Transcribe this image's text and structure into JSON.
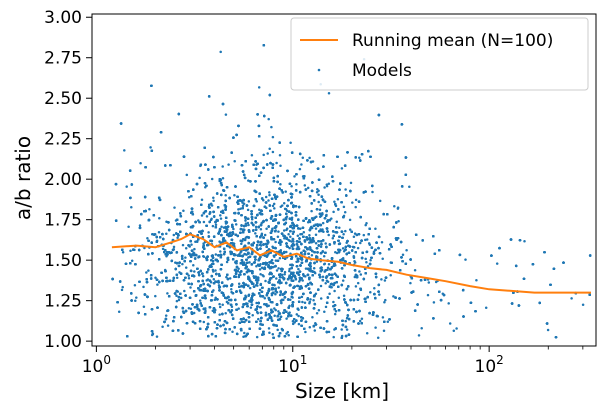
{
  "chart_data": {
    "type": "scatter",
    "xlabel": "Size [km]",
    "ylabel": "a/b ratio",
    "xscale": "log",
    "xlim": [
      0.95,
      350
    ],
    "ylim": [
      0.97,
      3.02
    ],
    "xticks": [
      {
        "value": 1,
        "base": "10",
        "exp": "0"
      },
      {
        "value": 10,
        "base": "10",
        "exp": "1"
      },
      {
        "value": 100,
        "base": "10",
        "exp": "2"
      }
    ],
    "yticks": [
      {
        "value": 1.0,
        "label": "1.00"
      },
      {
        "value": 1.25,
        "label": "1.25"
      },
      {
        "value": 1.5,
        "label": "1.50"
      },
      {
        "value": 1.75,
        "label": "1.75"
      },
      {
        "value": 2.0,
        "label": "2.00"
      },
      {
        "value": 2.25,
        "label": "2.25"
      },
      {
        "value": 2.5,
        "label": "2.50"
      },
      {
        "value": 2.75,
        "label": "2.75"
      },
      {
        "value": 3.0,
        "label": "3.00"
      }
    ],
    "legend_position": "top-right",
    "series": [
      {
        "name": "Running mean (N=100)",
        "kind": "line",
        "color": "#ff7f0e",
        "x": [
          1.2,
          1.6,
          2.0,
          2.4,
          2.7,
          3.0,
          3.5,
          4.0,
          4.6,
          5.2,
          6.0,
          6.8,
          7.8,
          9.0,
          10.5,
          12.0,
          14.0,
          17.0,
          20.0,
          25.0,
          30.0,
          38.0,
          48.0,
          60.0,
          80.0,
          100.0,
          130.0,
          170.0,
          220.0,
          330.0
        ],
        "y": [
          1.58,
          1.59,
          1.58,
          1.61,
          1.63,
          1.66,
          1.63,
          1.58,
          1.61,
          1.56,
          1.58,
          1.53,
          1.56,
          1.52,
          1.54,
          1.51,
          1.5,
          1.49,
          1.47,
          1.45,
          1.44,
          1.41,
          1.39,
          1.37,
          1.34,
          1.32,
          1.31,
          1.3,
          1.3,
          1.3
        ]
      },
      {
        "name": "Models",
        "kind": "scatter",
        "color": "#1f77b4",
        "n_points": 9000,
        "distribution": "dense cloud centered near size 7 km and ratio 1.45, spanning sizes ~1.2–330 km and ratios 1.02–3.0, with few points beyond 100 km"
      }
    ]
  }
}
